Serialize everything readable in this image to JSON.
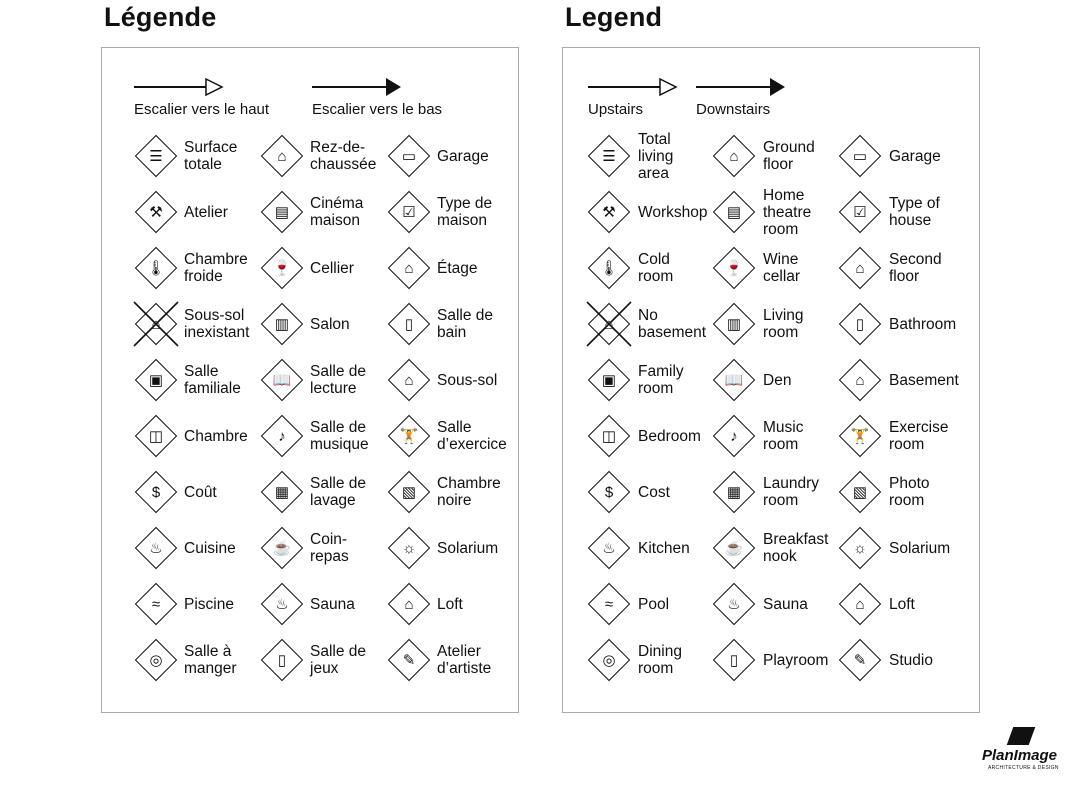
{
  "panels": [
    {
      "title": "Légende",
      "stairs_up": "Escalier vers le haut",
      "stairs_down": "Escalier vers le bas",
      "items": [
        {
          "label": "Surface\ntotale",
          "icon": "total-area-icon",
          "glyph": "☰"
        },
        {
          "label": "Rez-de-\nchaussée",
          "icon": "ground-floor-icon",
          "glyph": "⌂"
        },
        {
          "label": "Garage",
          "icon": "garage-icon",
          "glyph": "▭"
        },
        {
          "label": "Atelier",
          "icon": "hammer-icon",
          "glyph": "⚒"
        },
        {
          "label": "Cinéma\nmaison",
          "icon": "home-theatre-icon",
          "glyph": "▤"
        },
        {
          "label": "Type de\nmaison",
          "icon": "house-type-icon",
          "glyph": "☑"
        },
        {
          "label": "Chambre\nfroide",
          "icon": "thermometer-icon",
          "glyph": "🌡"
        },
        {
          "label": "Cellier",
          "icon": "wine-icon",
          "glyph": "🍷"
        },
        {
          "label": "Étage",
          "icon": "second-floor-icon",
          "glyph": "⌂"
        },
        {
          "label": "Sous-sol\ninexistant",
          "icon": "no-basement-icon",
          "glyph": "⌂",
          "crossed": true
        },
        {
          "label": "Salon",
          "icon": "sofa-icon",
          "glyph": "▥"
        },
        {
          "label": "Salle de\nbain",
          "icon": "toilet-icon",
          "glyph": "▯"
        },
        {
          "label": "Salle\nfamiliale",
          "icon": "tv-icon",
          "glyph": "▣"
        },
        {
          "label": "Salle de\nlecture",
          "icon": "book-icon",
          "glyph": "📖"
        },
        {
          "label": "Sous-sol",
          "icon": "basement-icon",
          "glyph": "⌂"
        },
        {
          "label": "Chambre",
          "icon": "bed-icon",
          "glyph": "◫"
        },
        {
          "label": "Salle de\nmusique",
          "icon": "music-note-icon",
          "glyph": "♪"
        },
        {
          "label": "Salle\nd’exercice",
          "icon": "weightlifter-icon",
          "glyph": "🏋"
        },
        {
          "label": "Coût",
          "icon": "dollar-icon",
          "glyph": "$"
        },
        {
          "label": "Salle de\nlavage",
          "icon": "laundry-icon",
          "glyph": "▦"
        },
        {
          "label": "Chambre\nnoire",
          "icon": "camera-icon",
          "glyph": "▧"
        },
        {
          "label": "Cuisine",
          "icon": "pot-icon",
          "glyph": "♨"
        },
        {
          "label": "Coin-\nrepas",
          "icon": "coffee-cup-icon",
          "glyph": "☕"
        },
        {
          "label": "Solarium",
          "icon": "sun-icon",
          "glyph": "☼"
        },
        {
          "label": "Piscine",
          "icon": "swimmer-icon",
          "glyph": "≈"
        },
        {
          "label": "Sauna",
          "icon": "sauna-icon",
          "glyph": "♨"
        },
        {
          "label": "Loft",
          "icon": "loft-icon",
          "glyph": "⌂"
        },
        {
          "label": "Salle à\nmanger",
          "icon": "plate-cutlery-icon",
          "glyph": "◎"
        },
        {
          "label": "Salle de\njeux",
          "icon": "playroom-icon",
          "glyph": "▯"
        },
        {
          "label": "Atelier\nd’artiste",
          "icon": "palette-icon",
          "glyph": "✎"
        }
      ]
    },
    {
      "title": "Legend",
      "stairs_up": "Upstairs",
      "stairs_down": "Downstairs",
      "items": [
        {
          "label": "Total\nliving\narea",
          "icon": "total-area-icon",
          "glyph": "☰"
        },
        {
          "label": "Ground\nfloor",
          "icon": "ground-floor-icon",
          "glyph": "⌂"
        },
        {
          "label": "Garage",
          "icon": "garage-icon",
          "glyph": "▭"
        },
        {
          "label": "Workshop",
          "icon": "hammer-icon",
          "glyph": "⚒"
        },
        {
          "label": "Home\ntheatre\nroom",
          "icon": "home-theatre-icon",
          "glyph": "▤"
        },
        {
          "label": "Type of\nhouse",
          "icon": "house-type-icon",
          "glyph": "☑"
        },
        {
          "label": "Cold\nroom",
          "icon": "thermometer-icon",
          "glyph": "🌡"
        },
        {
          "label": "Wine\ncellar",
          "icon": "wine-icon",
          "glyph": "🍷"
        },
        {
          "label": "Second\nfloor",
          "icon": "second-floor-icon",
          "glyph": "⌂"
        },
        {
          "label": "No\nbasement",
          "icon": "no-basement-icon",
          "glyph": "⌂",
          "crossed": true
        },
        {
          "label": "Living\nroom",
          "icon": "sofa-icon",
          "glyph": "▥"
        },
        {
          "label": "Bathroom",
          "icon": "toilet-icon",
          "glyph": "▯"
        },
        {
          "label": "Family\nroom",
          "icon": "tv-icon",
          "glyph": "▣"
        },
        {
          "label": "Den",
          "icon": "book-icon",
          "glyph": "📖"
        },
        {
          "label": "Basement",
          "icon": "basement-icon",
          "glyph": "⌂"
        },
        {
          "label": "Bedroom",
          "icon": "bed-icon",
          "glyph": "◫"
        },
        {
          "label": "Music\nroom",
          "icon": "music-note-icon",
          "glyph": "♪"
        },
        {
          "label": "Exercise\nroom",
          "icon": "weightlifter-icon",
          "glyph": "🏋"
        },
        {
          "label": "Cost",
          "icon": "dollar-icon",
          "glyph": "$"
        },
        {
          "label": "Laundry\nroom",
          "icon": "laundry-icon",
          "glyph": "▦"
        },
        {
          "label": "Photo\nroom",
          "icon": "camera-icon",
          "glyph": "▧"
        },
        {
          "label": "Kitchen",
          "icon": "pot-icon",
          "glyph": "♨"
        },
        {
          "label": "Breakfast\nnook",
          "icon": "coffee-cup-icon",
          "glyph": "☕"
        },
        {
          "label": "Solarium",
          "icon": "sun-icon",
          "glyph": "☼"
        },
        {
          "label": "Pool",
          "icon": "swimmer-icon",
          "glyph": "≈"
        },
        {
          "label": "Sauna",
          "icon": "sauna-icon",
          "glyph": "♨"
        },
        {
          "label": "Loft",
          "icon": "loft-icon",
          "glyph": "⌂"
        },
        {
          "label": "Dining\nroom",
          "icon": "plate-cutlery-icon",
          "glyph": "◎"
        },
        {
          "label": "Playroom",
          "icon": "playroom-icon",
          "glyph": "▯"
        },
        {
          "label": "Studio",
          "icon": "palette-icon",
          "glyph": "✎"
        }
      ]
    }
  ],
  "logo": {
    "name": "PlanImage",
    "tagline": "ARCHITECTURE & DESIGN"
  }
}
